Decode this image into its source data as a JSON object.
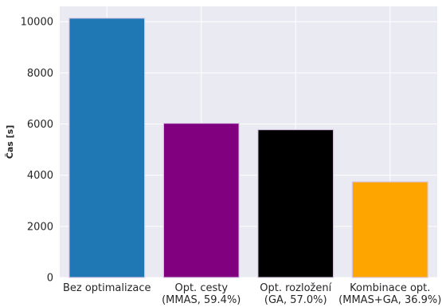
{
  "chart_data": {
    "type": "bar",
    "categories": [
      [
        "Bez optimalizace"
      ],
      [
        "Opt. cesty",
        "(MMAS, 59.4%)"
      ],
      [
        "Opt. rozložení",
        "(GA, 57.0%)"
      ],
      [
        "Kombinace opt.",
        "(MMAS+GA, 36.9%)"
      ]
    ],
    "values": [
      10140,
      6030,
      5780,
      3740
    ],
    "colors": [
      "#1f77b4",
      "#800080",
      "#000000",
      "#ffa500"
    ],
    "ylabel": "Čas [s]",
    "xlabel": "",
    "ylim": [
      0,
      10600
    ],
    "yticks": [
      0,
      2000,
      4000,
      6000,
      8000,
      10000
    ],
    "grid": true,
    "background": "#eaeaf2"
  }
}
